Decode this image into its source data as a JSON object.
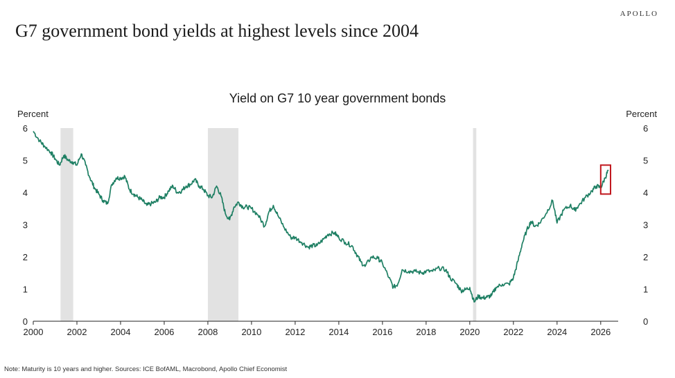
{
  "brand": "APOLLO",
  "headline": "G7 government bond yields at highest levels since 2004",
  "note": "Note: Maturity is 10 years and higher. Sources: ICE BofAML, Macrobond, Apollo Chief Economist",
  "colors": {
    "line": "#1e7f63",
    "recession": "#e2e2e2",
    "highlight": "#c0161d",
    "axis": "#222222"
  },
  "chart_data": {
    "type": "line",
    "title": "Yield on G7 10 year government bonds",
    "ylabel_left": "Percent",
    "ylabel_right": "Percent",
    "xlim": [
      2000,
      2026.8
    ],
    "ylim": [
      0,
      6
    ],
    "x_ticks": [
      "2000",
      "2002",
      "2004",
      "2006",
      "2008",
      "2010",
      "2012",
      "2014",
      "2016",
      "2018",
      "2020",
      "2022",
      "2024",
      "2026"
    ],
    "y_ticks": [
      "0",
      "1",
      "2",
      "3",
      "4",
      "5",
      "6"
    ],
    "grid": false,
    "shaded_periods": [
      [
        2001.25,
        2001.83
      ],
      [
        2008.0,
        2009.4
      ],
      [
        2020.15,
        2020.3
      ]
    ],
    "highlight_box": {
      "x": [
        2026.0,
        2026.45
      ],
      "y": [
        3.95,
        4.85
      ]
    },
    "x": [
      2000.0,
      2000.3,
      2000.5,
      2000.8,
      2001.0,
      2001.2,
      2001.4,
      2001.6,
      2001.8,
      2002.0,
      2002.2,
      2002.4,
      2002.6,
      2002.8,
      2003.0,
      2003.2,
      2003.4,
      2003.6,
      2003.8,
      2004.0,
      2004.2,
      2004.4,
      2004.6,
      2004.8,
      2005.0,
      2005.2,
      2005.4,
      2005.6,
      2005.8,
      2006.0,
      2006.2,
      2006.4,
      2006.6,
      2006.8,
      2007.0,
      2007.2,
      2007.4,
      2007.6,
      2007.8,
      2008.0,
      2008.2,
      2008.4,
      2008.6,
      2008.8,
      2009.0,
      2009.2,
      2009.4,
      2009.6,
      2009.8,
      2010.0,
      2010.3,
      2010.6,
      2010.8,
      2011.0,
      2011.2,
      2011.5,
      2011.8,
      2012.0,
      2012.3,
      2012.6,
      2012.8,
      2013.0,
      2013.3,
      2013.5,
      2013.8,
      2014.0,
      2014.3,
      2014.6,
      2014.8,
      2015.0,
      2015.2,
      2015.5,
      2015.8,
      2016.0,
      2016.3,
      2016.5,
      2016.7,
      2016.9,
      2017.2,
      2017.5,
      2017.8,
      2018.0,
      2018.3,
      2018.6,
      2018.9,
      2019.1,
      2019.4,
      2019.6,
      2019.8,
      2020.0,
      2020.2,
      2020.4,
      2020.6,
      2020.8,
      2021.0,
      2021.2,
      2021.5,
      2021.8,
      2022.0,
      2022.2,
      2022.4,
      2022.6,
      2022.8,
      2023.0,
      2023.2,
      2023.5,
      2023.8,
      2024.0,
      2024.3,
      2024.6,
      2024.8,
      2025.0,
      2025.3,
      2025.6,
      2025.8,
      2026.0,
      2026.2,
      2026.35
    ],
    "y": [
      5.9,
      5.6,
      5.45,
      5.25,
      5.05,
      4.85,
      5.15,
      5.0,
      4.95,
      4.85,
      5.2,
      4.85,
      4.45,
      4.15,
      3.95,
      3.75,
      3.65,
      4.25,
      4.45,
      4.45,
      4.5,
      4.1,
      3.95,
      3.85,
      3.75,
      3.6,
      3.65,
      3.7,
      3.85,
      3.85,
      4.05,
      4.2,
      4.0,
      4.05,
      4.2,
      4.25,
      4.4,
      4.2,
      4.1,
      3.9,
      3.85,
      4.2,
      3.9,
      3.35,
      3.15,
      3.55,
      3.7,
      3.55,
      3.55,
      3.5,
      3.3,
      2.95,
      3.4,
      3.6,
      3.3,
      2.9,
      2.6,
      2.6,
      2.45,
      2.3,
      2.35,
      2.35,
      2.55,
      2.7,
      2.75,
      2.6,
      2.45,
      2.35,
      2.1,
      1.85,
      1.7,
      2.0,
      1.95,
      1.8,
      1.35,
      1.05,
      1.15,
      1.6,
      1.55,
      1.55,
      1.5,
      1.55,
      1.55,
      1.65,
      1.6,
      1.35,
      1.15,
      0.95,
      0.98,
      1.05,
      0.6,
      0.78,
      0.72,
      0.75,
      0.8,
      1.05,
      1.15,
      1.15,
      1.35,
      1.85,
      2.4,
      2.8,
      3.1,
      2.95,
      3.05,
      3.35,
      3.75,
      3.05,
      3.45,
      3.6,
      3.45,
      3.6,
      3.85,
      4.05,
      4.2,
      4.15,
      4.45,
      4.7
    ]
  }
}
